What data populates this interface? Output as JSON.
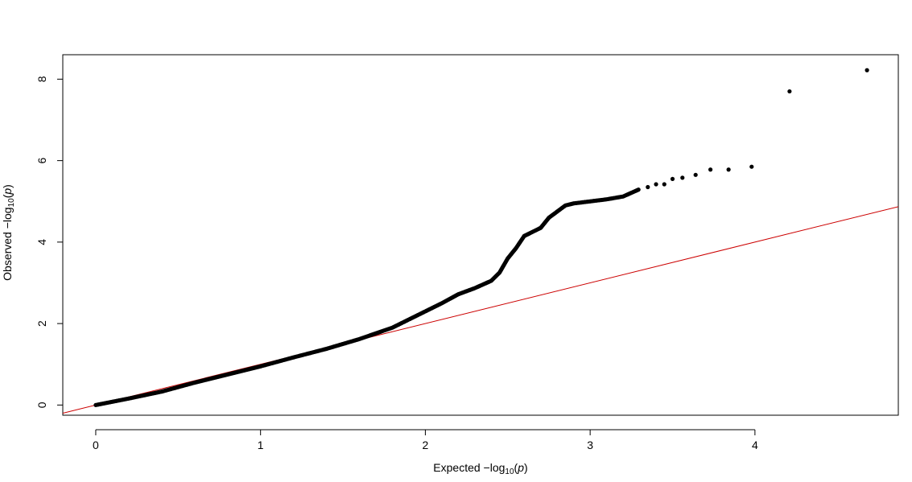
{
  "chart_data": {
    "type": "scatter",
    "title": "",
    "xlabel": {
      "text": "Expected  −log",
      "subscript": "10",
      "variable": "p"
    },
    "ylabel": {
      "text": "Observed  −log",
      "subscript": "10",
      "variable": "p"
    },
    "xlim": [
      -0.2,
      4.87
    ],
    "ylim": [
      -0.25,
      8.6
    ],
    "x_ticks": [
      0,
      1,
      2,
      3,
      4
    ],
    "y_ticks": [
      0,
      2,
      4,
      6,
      8
    ],
    "grid": false,
    "point_color": "#000000",
    "reference_line": {
      "slope": 1,
      "intercept": 0,
      "color": "#cc0000"
    },
    "curve_points": [
      [
        0.0,
        0.0
      ],
      [
        0.2,
        0.16
      ],
      [
        0.4,
        0.33
      ],
      [
        0.6,
        0.55
      ],
      [
        0.8,
        0.75
      ],
      [
        1.0,
        0.95
      ],
      [
        1.2,
        1.17
      ],
      [
        1.4,
        1.38
      ],
      [
        1.6,
        1.62
      ],
      [
        1.8,
        1.9
      ],
      [
        1.9,
        2.1
      ],
      [
        2.0,
        2.3
      ],
      [
        2.1,
        2.5
      ],
      [
        2.2,
        2.72
      ],
      [
        2.3,
        2.87
      ],
      [
        2.4,
        3.05
      ],
      [
        2.45,
        3.25
      ],
      [
        2.5,
        3.6
      ],
      [
        2.55,
        3.85
      ],
      [
        2.6,
        4.15
      ],
      [
        2.65,
        4.25
      ],
      [
        2.7,
        4.35
      ],
      [
        2.75,
        4.6
      ],
      [
        2.8,
        4.75
      ],
      [
        2.85,
        4.9
      ],
      [
        2.9,
        4.95
      ],
      [
        3.0,
        5.0
      ],
      [
        3.1,
        5.05
      ],
      [
        3.2,
        5.12
      ],
      [
        3.3,
        5.3
      ]
    ],
    "upper_points": [
      [
        3.35,
        5.35
      ],
      [
        3.4,
        5.42
      ],
      [
        3.45,
        5.42
      ],
      [
        3.5,
        5.55
      ],
      [
        3.56,
        5.58
      ],
      [
        3.64,
        5.65
      ],
      [
        3.73,
        5.78
      ],
      [
        3.84,
        5.78
      ],
      [
        3.98,
        5.85
      ],
      [
        4.21,
        7.7
      ],
      [
        4.68,
        8.22
      ]
    ]
  }
}
